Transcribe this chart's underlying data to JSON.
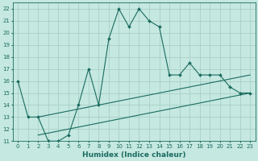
{
  "title": "",
  "xlabel": "Humidex (Indice chaleur)",
  "bg_color": "#c5e8e0",
  "grid_color": "#a8d0c8",
  "line_color": "#1a6b60",
  "xlim": [
    -0.5,
    23.5
  ],
  "ylim": [
    11,
    22.5
  ],
  "xticks": [
    0,
    1,
    2,
    3,
    4,
    5,
    6,
    7,
    8,
    9,
    10,
    11,
    12,
    13,
    14,
    15,
    16,
    17,
    18,
    19,
    20,
    21,
    22,
    23
  ],
  "yticks": [
    11,
    12,
    13,
    14,
    15,
    16,
    17,
    18,
    19,
    20,
    21,
    22
  ],
  "main_x": [
    0,
    1,
    2,
    3,
    4,
    5,
    6,
    7,
    8,
    9,
    10,
    11,
    12,
    13,
    14,
    15,
    16,
    17,
    18,
    19,
    20,
    21,
    22,
    23
  ],
  "main_y": [
    16,
    13,
    13,
    11,
    11,
    11.5,
    14,
    17,
    14,
    19.5,
    22,
    20.5,
    22,
    21,
    20.5,
    16.5,
    16.5,
    17.5,
    16.5,
    16.5,
    16.5,
    15.5,
    15,
    15
  ],
  "line1_x": [
    2,
    23
  ],
  "line1_y": [
    13.0,
    16.5
  ],
  "line2_x": [
    2,
    23
  ],
  "line2_y": [
    11.5,
    15.0
  ],
  "xlabel_fontsize": 6.5,
  "tick_fontsize": 5.0
}
